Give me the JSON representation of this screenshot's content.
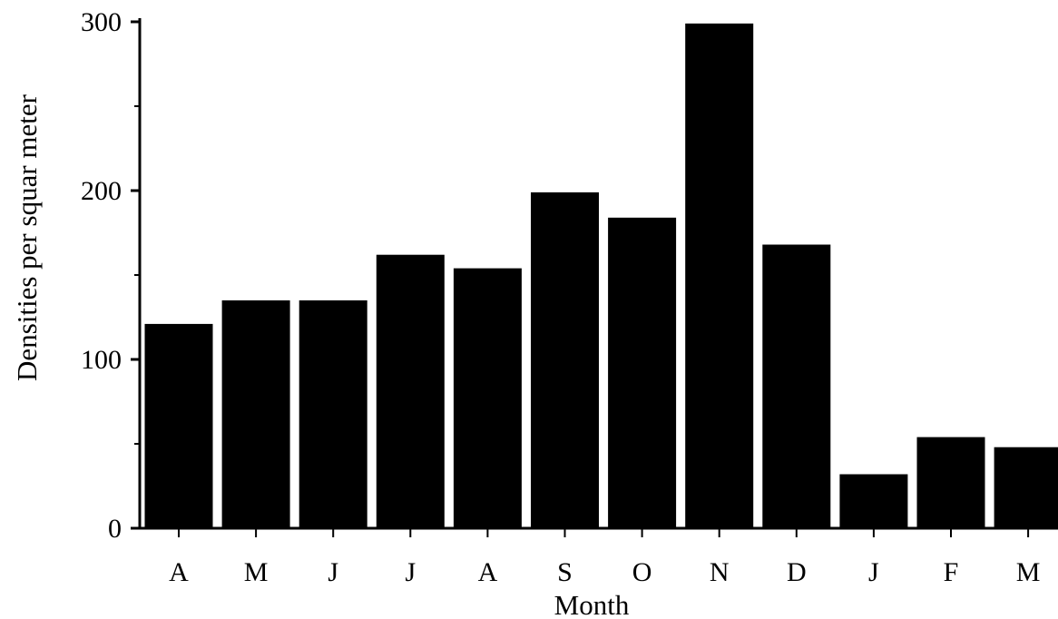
{
  "chart_data": {
    "type": "bar",
    "title": "",
    "xlabel": "Month",
    "ylabel": "Densities per squar meter",
    "categories": [
      "A",
      "M",
      "J",
      "J",
      "A",
      "S",
      "O",
      "N",
      "D",
      "J",
      "F",
      "M"
    ],
    "values": [
      121,
      135,
      135,
      162,
      154,
      199,
      184,
      299,
      168,
      32,
      54,
      48
    ],
    "ylim": [
      0,
      300
    ],
    "yticks": [
      0,
      100,
      200,
      300
    ],
    "yticks_minor": [
      50,
      150,
      250
    ],
    "grid": false,
    "legend": "none",
    "bar_color": "#000000",
    "axis_color": "#000000"
  }
}
